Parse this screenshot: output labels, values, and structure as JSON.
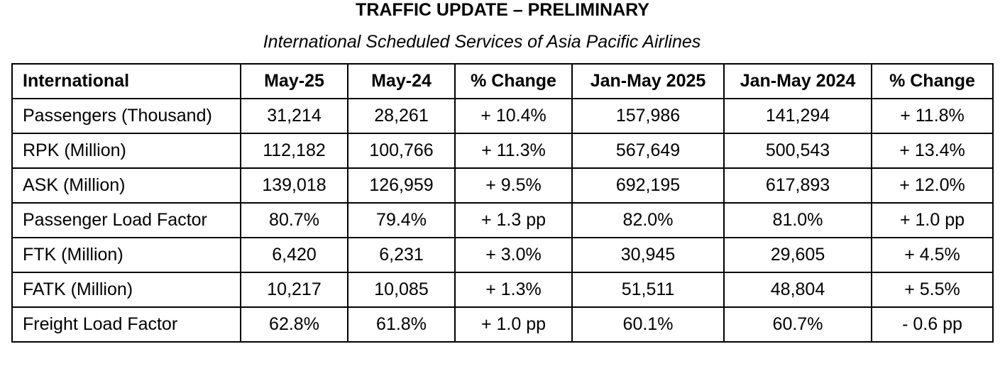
{
  "title": "TRAFFIC UPDATE – PRELIMINARY",
  "subtitle": "International Scheduled Services of Asia Pacific Airlines",
  "table": {
    "headers": [
      "International",
      "May-25",
      "May-24",
      "% Change",
      "Jan-May 2025",
      "Jan-May 2024",
      "% Change"
    ],
    "rows": [
      [
        "Passengers (Thousand)",
        "31,214",
        "28,261",
        "+ 10.4%",
        "157,986",
        "141,294",
        "+ 11.8%"
      ],
      [
        "RPK (Million)",
        "112,182",
        "100,766",
        "+ 11.3%",
        "567,649",
        "500,543",
        "+ 13.4%"
      ],
      [
        "ASK (Million)",
        "139,018",
        "126,959",
        "+ 9.5%",
        "692,195",
        "617,893",
        "+ 12.0%"
      ],
      [
        "Passenger Load Factor",
        "80.7%",
        "79.4%",
        "+ 1.3 pp",
        "82.0%",
        "81.0%",
        "+ 1.0 pp"
      ],
      [
        "FTK (Million)",
        "6,420",
        "6,231",
        "+ 3.0%",
        "30,945",
        "29,605",
        "+ 4.5%"
      ],
      [
        "FATK (Million)",
        "10,217",
        "10,085",
        "+ 1.3%",
        "51,511",
        "48,804",
        "+ 5.5%"
      ],
      [
        "Freight Load Factor",
        "62.8%",
        "61.8%",
        "+ 1.0 pp",
        "60.1%",
        "60.7%",
        "- 0.6 pp"
      ]
    ]
  }
}
